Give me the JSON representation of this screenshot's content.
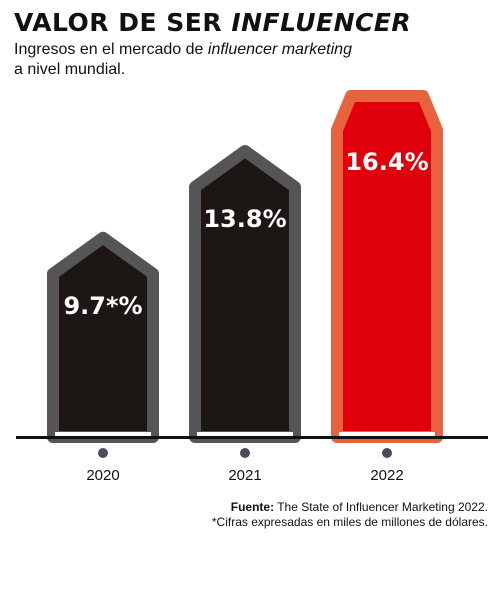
{
  "header": {
    "title_main": "VALOR DE SER ",
    "title_italic": "INFLUENCER",
    "subtitle_line1_a": "Ingresos en el mercado de ",
    "subtitle_line1_italic": "influencer marketing",
    "subtitle_line2": "a nivel mundial."
  },
  "chart_data": {
    "type": "bar",
    "categories": [
      "2020",
      "2021",
      "2022"
    ],
    "values": [
      9.7,
      13.8,
      16.4
    ],
    "value_labels": [
      "9.7*%",
      "13.8%",
      "16.4%"
    ],
    "highlight_index": 2,
    "ylim": [
      0,
      16.4
    ]
  },
  "colors": {
    "bar_fill": "#1c1614",
    "bar_border": "#555456",
    "highlight_fill": "#e0000c",
    "highlight_border": "#e8623d",
    "baseline": "#111111",
    "dot": "#4a4e5a"
  },
  "footer": {
    "source_label": "Fuente:",
    "source_text": " The State of Influencer Marketing 2022.",
    "note": "*Cifras expresadas en miles de millones de dólares."
  }
}
